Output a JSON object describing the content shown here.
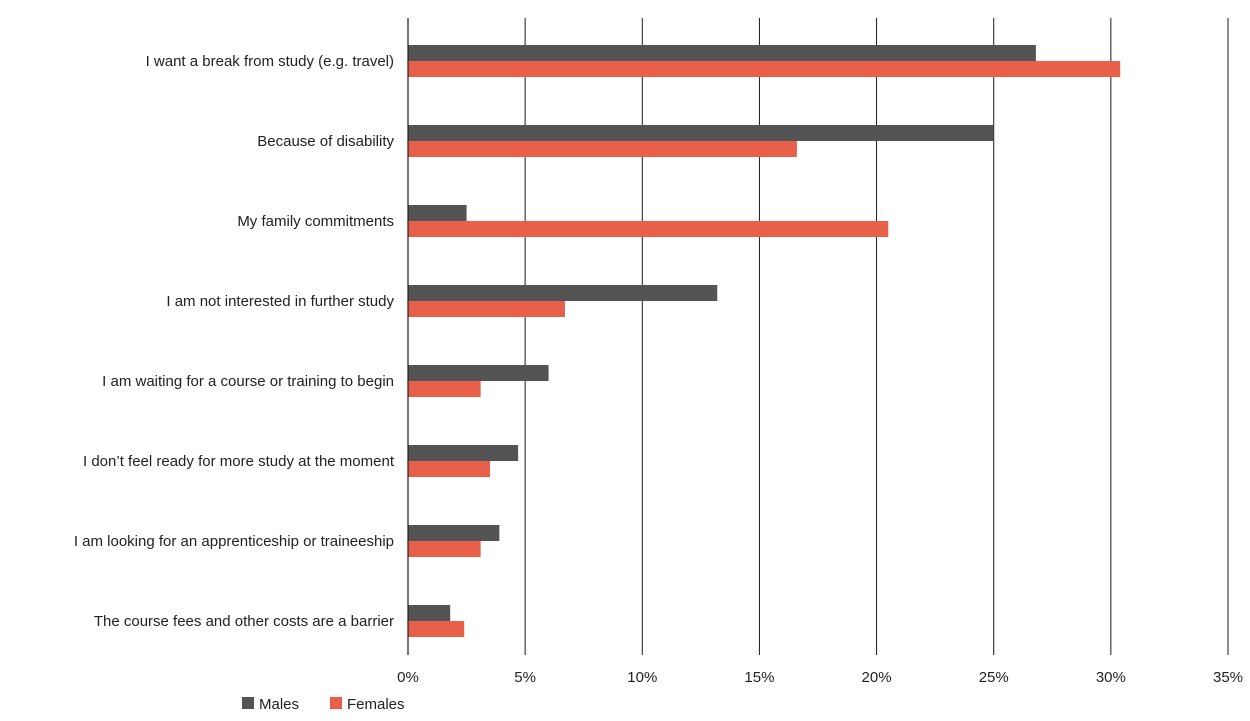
{
  "chart_data": {
    "type": "bar",
    "orientation": "horizontal",
    "categories": [
      "I want a break from study (e.g. travel)",
      "Because of disability",
      "My family commitments",
      "I am not interested in further study",
      "I am waiting for a course or training to begin",
      "I don’t feel ready for more study at the moment",
      "I am looking for an apprenticeship or traineeship",
      "The course fees and other costs are a barrier"
    ],
    "series": [
      {
        "name": "Males",
        "color": "#545454",
        "values": [
          26.8,
          25.0,
          2.5,
          13.2,
          6.0,
          4.7,
          3.9,
          1.8
        ]
      },
      {
        "name": "Females",
        "color": "#e8604a",
        "values": [
          30.4,
          16.6,
          20.5,
          6.7,
          3.1,
          3.5,
          3.1,
          2.4
        ]
      }
    ],
    "x_ticks": [
      "0%",
      "5%",
      "10%",
      "15%",
      "20%",
      "25%",
      "30%",
      "35%"
    ],
    "xlim": [
      0,
      35
    ],
    "value_unit": "%",
    "grid": "vertical",
    "legend_position": "bottom-left"
  }
}
